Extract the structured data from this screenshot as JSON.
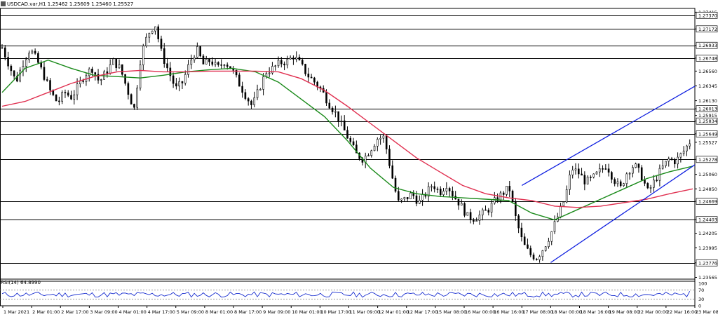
{
  "header": {
    "symbol": "USDCAD.var,H1",
    "ohlc": "1.25462 1.25609 1.25460 1.25527"
  },
  "indicator": {
    "label": "RSI(14) 64.8990",
    "levels": [
      70,
      30
    ],
    "ticks": [
      100,
      70,
      30,
      0
    ]
  },
  "chart_data": {
    "type": "candlestick",
    "timeframe": "H1",
    "ylim": [
      1.2356,
      1.2747
    ],
    "price_ticks": [
      1.27415,
      1.27172,
      1.26933,
      1.26748,
      1.2656,
      1.26345,
      1.2613,
      1.26013,
      1.25915,
      1.25834,
      1.25649,
      1.25527,
      1.25278,
      1.2506,
      1.2485,
      1.24669,
      1.24403,
      1.24205,
      1.23995,
      1.23776,
      1.23565
    ],
    "horizontal_levels": [
      1.2737,
      1.27172,
      1.26933,
      1.26748,
      1.26013,
      1.25834,
      1.25649,
      1.25278,
      1.24669,
      1.24403,
      1.23776
    ],
    "current_price": 1.25527,
    "x_ticks": [
      "1 Mar 2021",
      "2 Mar 01:00",
      "2 Mar 17:00",
      "3 Mar 09:00",
      "4 Mar 01:00",
      "4 Mar 17:00",
      "5 Mar 09:00",
      "8 Mar 01:00",
      "8 Mar 17:00",
      "9 Mar 09:00",
      "10 Mar 01:00",
      "10 Mar 17:00",
      "11 Mar 09:00",
      "12 Mar 01:00",
      "12 Mar 17:00",
      "15 Mar 08:00",
      "16 Mar 00:00",
      "16 Mar 16:00",
      "17 Mar 08:00",
      "18 Mar 00:00",
      "18 Mar 16:00",
      "19 Mar 08:00",
      "22 Mar 00:00",
      "22 Mar 16:00",
      "23 Mar 08:00"
    ],
    "close_path": [
      1.269,
      1.2665,
      1.264,
      1.2668,
      1.2688,
      1.2672,
      1.265,
      1.2625,
      1.261,
      1.2625,
      1.2618,
      1.2635,
      1.2652,
      1.266,
      1.264,
      1.2655,
      1.267,
      1.266,
      1.263,
      1.26,
      1.268,
      1.271,
      1.2725,
      1.268,
      1.2655,
      1.263,
      1.264,
      1.2668,
      1.2688,
      1.2665,
      1.2672,
      1.266,
      1.267,
      1.266,
      1.264,
      1.2622,
      1.2605,
      1.263,
      1.2655,
      1.266,
      1.2668,
      1.267,
      1.2678,
      1.2665,
      1.265,
      1.264,
      1.2628,
      1.261,
      1.2595,
      1.2575,
      1.2555,
      1.2535,
      1.2528,
      1.2542,
      1.2558,
      1.256,
      1.251,
      1.2465,
      1.247,
      1.2478,
      1.2465,
      1.2478,
      1.2492,
      1.248,
      1.2492,
      1.2475,
      1.2462,
      1.2445,
      1.2442,
      1.2448,
      1.2455,
      1.2468,
      1.2478,
      1.2487,
      1.244,
      1.2405,
      1.239,
      1.2385,
      1.24,
      1.242,
      1.2445,
      1.247,
      1.2515,
      1.2508,
      1.2495,
      1.25,
      1.251,
      1.252,
      1.25,
      1.2485,
      1.251,
      1.252,
      1.2505,
      1.248,
      1.2498,
      1.2515,
      1.2528,
      1.2525,
      1.2538,
      1.2553
    ],
    "trend_channel": {
      "upper": [
        [
          "17 Mar 08:00",
          1.249
        ],
        [
          "23 Mar 08:00",
          1.2634
        ]
      ],
      "lower": [
        [
          "18 Mar 00:00",
          1.2378
        ],
        [
          "23 Mar 08:00",
          1.252
        ]
      ]
    },
    "moving_averages": [
      {
        "color": "#1a8a1a",
        "values": [
          1.2625,
          1.266,
          1.2672,
          1.266,
          1.265,
          1.2648,
          1.2646,
          1.265,
          1.2655,
          1.2658,
          1.266,
          1.2655,
          1.264,
          1.2615,
          1.259,
          1.2555,
          1.2515,
          1.2487,
          1.2478,
          1.2474,
          1.2472,
          1.247,
          1.2468,
          1.245,
          1.244,
          1.2455,
          1.247,
          1.2485,
          1.25,
          1.251,
          1.2518
        ]
      },
      {
        "color": "#e03050",
        "values": [
          1.2605,
          1.2612,
          1.2625,
          1.2638,
          1.2648,
          1.2655,
          1.2657,
          1.2655,
          1.2655,
          1.2656,
          1.2656,
          1.2656,
          1.2655,
          1.2645,
          1.2628,
          1.2605,
          1.258,
          1.2555,
          1.253,
          1.251,
          1.249,
          1.2478,
          1.2472,
          1.2468,
          1.246,
          1.2458,
          1.246,
          1.2465,
          1.247,
          1.2478,
          1.2485
        ]
      }
    ],
    "rsi_value": 64.899
  }
}
